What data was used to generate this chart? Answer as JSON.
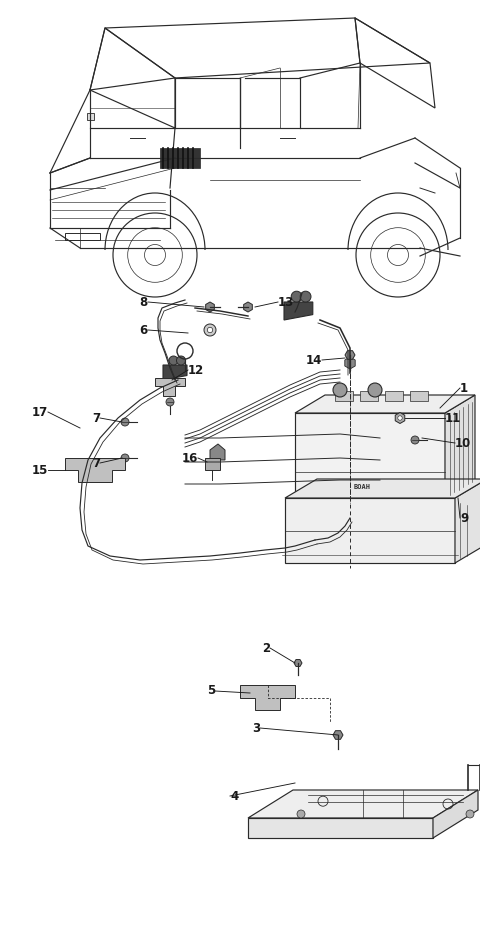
{
  "bg_color": "#ffffff",
  "line_color": "#2a2a2a",
  "fig_width": 4.8,
  "fig_height": 9.48,
  "dpi": 100,
  "car_color": "#2a2a2a",
  "car_lw": 0.85,
  "part_lw": 0.85,
  "label_fontsize": 8.5,
  "label_color": "#1a1a1a"
}
